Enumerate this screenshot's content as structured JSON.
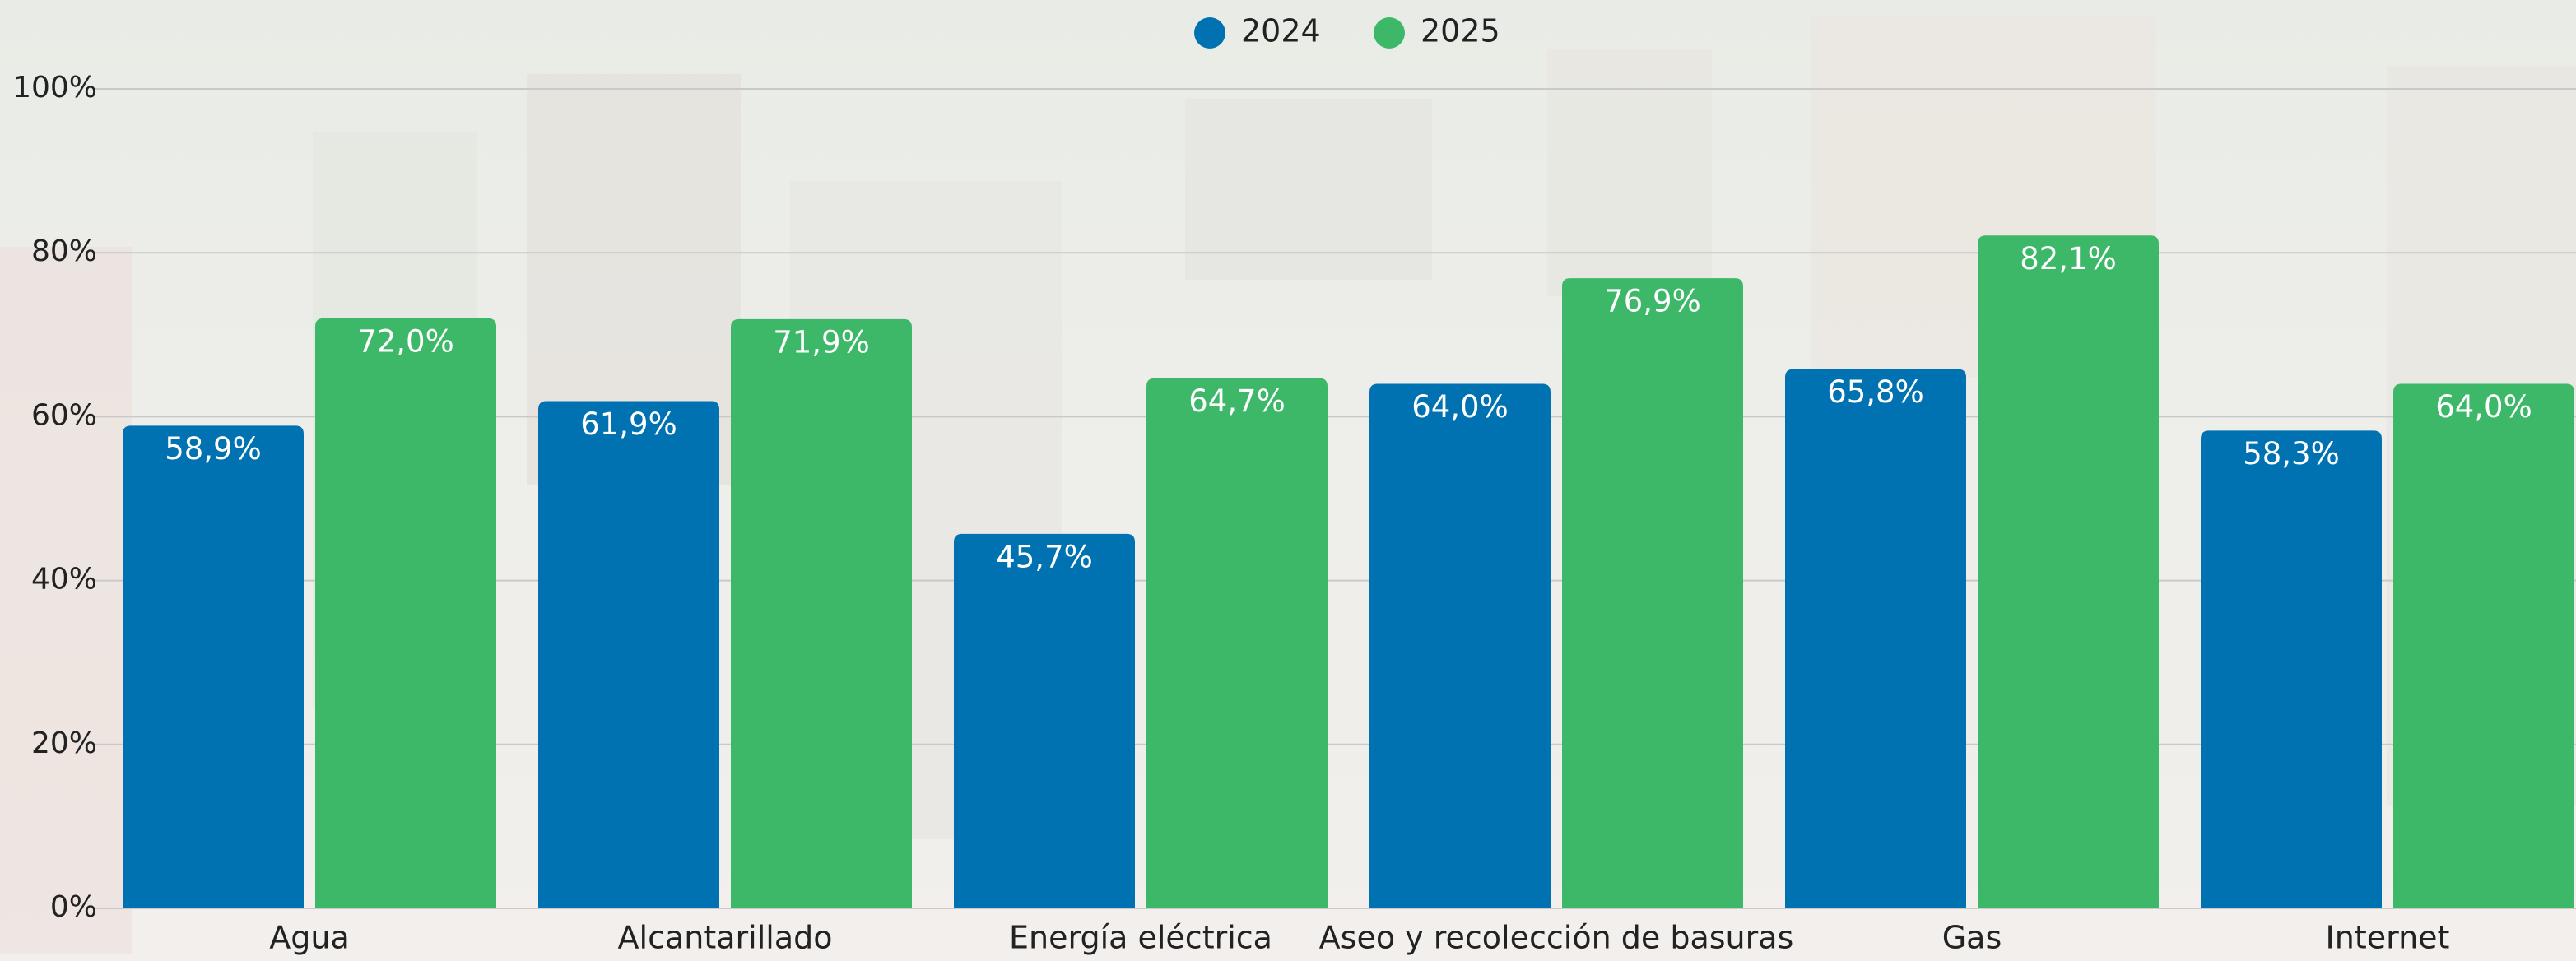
{
  "chart_data": {
    "type": "bar",
    "categories": [
      "Agua",
      "Alcantarillado",
      "Energía eléctrica",
      "Aseo y recolección de basuras",
      "Gas",
      "Internet"
    ],
    "series": [
      {
        "name": "2024",
        "color": "#0072b2",
        "values": [
          58.9,
          61.9,
          45.7,
          64.0,
          65.8,
          58.3
        ],
        "value_labels": [
          "58,9%",
          "61,9%",
          "45,7%",
          "64,0%",
          "65,8%",
          "58,3%"
        ]
      },
      {
        "name": "2025",
        "color": "#3cb868",
        "values": [
          72.0,
          71.9,
          64.7,
          76.9,
          82.1,
          64.0
        ],
        "value_labels": [
          "72,0%",
          "71,9%",
          "64,7%",
          "76,9%",
          "82,1%",
          "64,0%"
        ]
      }
    ],
    "ylim": [
      0,
      100
    ],
    "yticks": [
      {
        "value": 0,
        "label": "0%"
      },
      {
        "value": 20,
        "label": "20%"
      },
      {
        "value": 40,
        "label": "40%"
      },
      {
        "value": 60,
        "label": "60%"
      },
      {
        "value": 80,
        "label": "80%"
      },
      {
        "value": 100,
        "label": "100%"
      }
    ],
    "grid": true,
    "legend": "top"
  }
}
